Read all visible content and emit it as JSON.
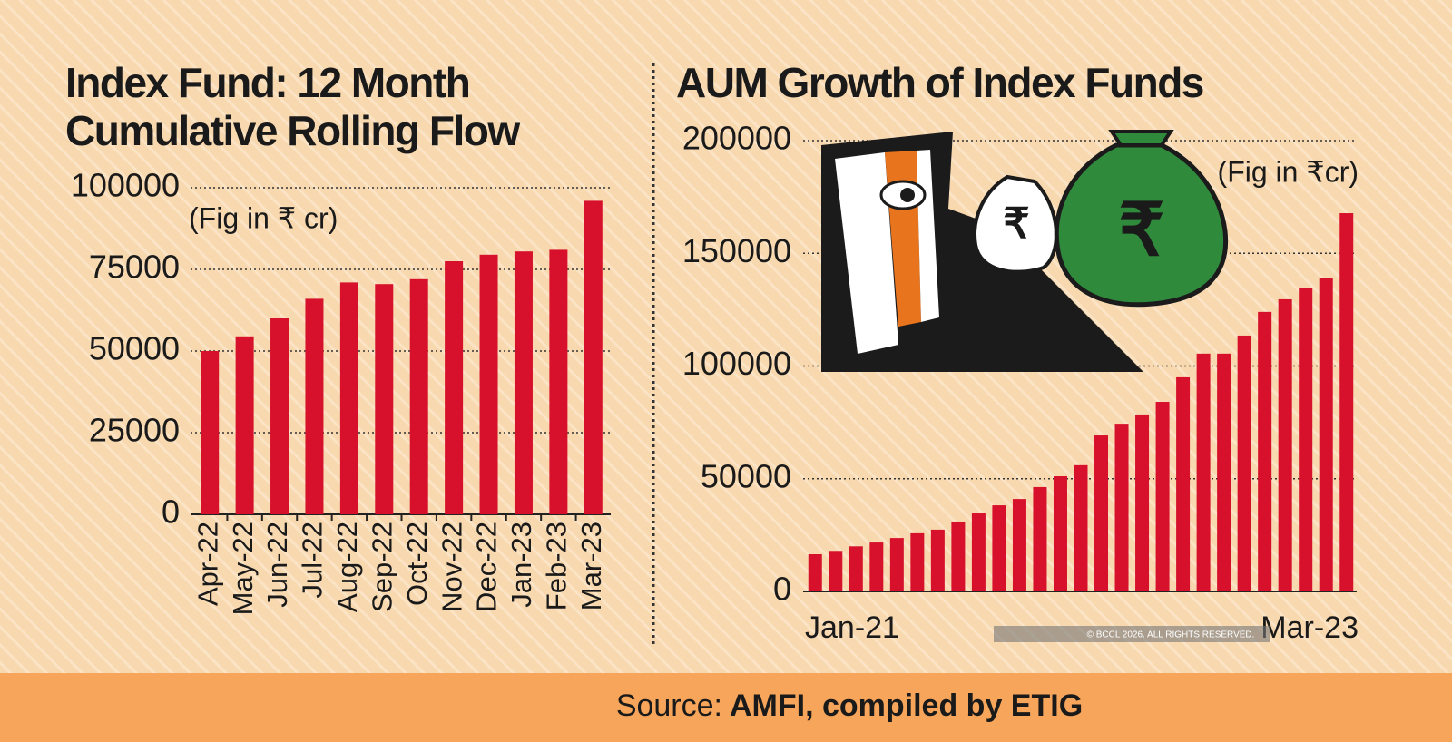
{
  "chart_data": [
    {
      "type": "bar",
      "title": [
        "Index Fund: 12 Month",
        "Cumulative Rolling Flow"
      ],
      "note": "(Fig in ₹ cr)",
      "categories": [
        "Apr-22",
        "May-22",
        "Jun-22",
        "Jul-22",
        "Aug-22",
        "Sep-22",
        "Oct-22",
        "Nov-22",
        "Dec-22",
        "Jan-23",
        "Feb-23",
        "Mar-23"
      ],
      "values": [
        50000,
        54500,
        60000,
        66000,
        71000,
        70500,
        72000,
        77500,
        79500,
        80500,
        81000,
        96000
      ],
      "color": "#d7102c",
      "ylim": [
        0,
        100000
      ],
      "yticks": [
        0,
        25000,
        50000,
        75000,
        100000
      ],
      "grid": true
    },
    {
      "type": "bar",
      "title": [
        "AUM Growth of Index Funds"
      ],
      "note": "(Fig in ₹cr)",
      "categories": [
        "Jan-21",
        null,
        null,
        null,
        null,
        null,
        null,
        null,
        null,
        null,
        null,
        null,
        null,
        null,
        null,
        null,
        null,
        null,
        null,
        null,
        null,
        null,
        null,
        null,
        null,
        null,
        "Mar-23"
      ],
      "values": [
        16500,
        18000,
        20000,
        21700,
        23700,
        25800,
        27400,
        31000,
        34600,
        38200,
        41000,
        46300,
        51100,
        56000,
        69200,
        74400,
        78500,
        84100,
        95000,
        105500,
        105500,
        113500,
        124000,
        129600,
        134400,
        139200,
        167800
      ],
      "color": "#d7102c",
      "ylim": [
        0,
        200000
      ],
      "yticks": [
        0,
        50000,
        100000,
        150000,
        200000
      ],
      "grid": true
    }
  ],
  "source": {
    "label": "Source:",
    "text": "AMFI, compiled by ETIG"
  },
  "watermark": "© BCCL 2026. ALL RIGHTS RESERVED."
}
